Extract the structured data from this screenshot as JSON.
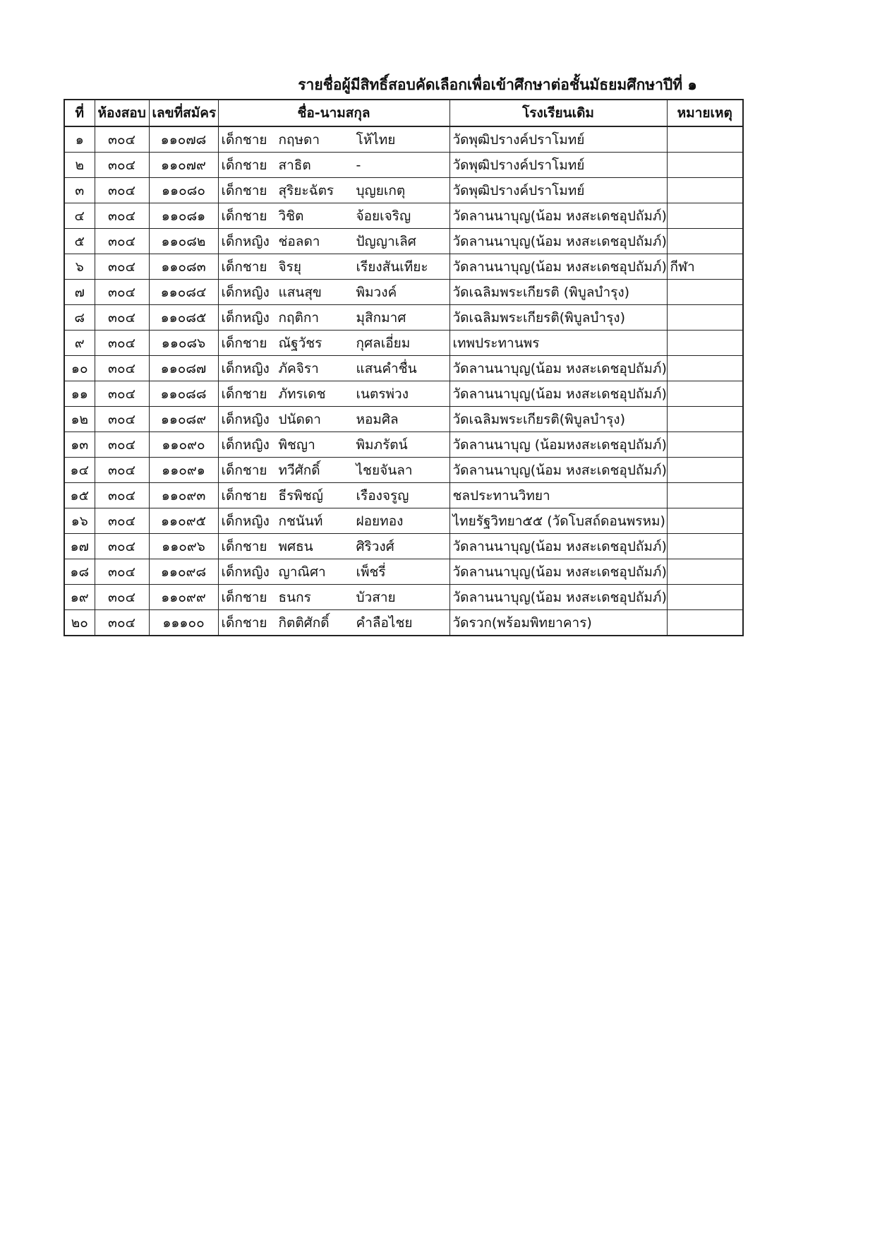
{
  "title": "รายชื่อผู้มีสิทธิ์สอบคัดเลือกเพื่อเข้าศึกษาต่อชั้นมัธยมศึกษาปีที่ ๑",
  "headers": [
    "ที่",
    "ห้องสอบ",
    "เลขที่สมัคร",
    "ชื่อ-นามสกุล",
    "โรงเรียนเดิม",
    "หมายเหตุ"
  ],
  "rows": [
    {
      "no": "๑",
      "room": "๓๐๔",
      "app": "๑๑๐๗๘",
      "prefix": "เด็กชาย",
      "first": "กฤษดา",
      "last": "โห้ไทย",
      "school": "วัดพุฒิปรางค์ปราโมทย์",
      "note": ""
    },
    {
      "no": "๒",
      "room": "๓๐๔",
      "app": "๑๑๐๗๙",
      "prefix": "เด็กชาย",
      "first": "สาธิต",
      "last": "-",
      "school": "วัดพุฒิปรางค์ปราโมทย์",
      "note": ""
    },
    {
      "no": "๓",
      "room": "๓๐๔",
      "app": "๑๑๐๘๐",
      "prefix": "เด็กชาย",
      "first": "สุริยะฉัตร",
      "last": "บุญยเกตุ",
      "school": "วัดพุฒิปรางค์ปราโมทย์",
      "note": ""
    },
    {
      "no": "๔",
      "room": "๓๐๔",
      "app": "๑๑๐๘๑",
      "prefix": "เด็กชาย",
      "first": "วิชิต",
      "last": "จ้อยเจริญ",
      "school": "วัดลานนาบุญ(น้อม หงสะเดชอุปถัมภ์)",
      "note": ""
    },
    {
      "no": "๕",
      "room": "๓๐๔",
      "app": "๑๑๐๘๒",
      "prefix": "เด็กหญิง",
      "first": "ช่อลดา",
      "last": "ปัญญาเลิศ",
      "school": "วัดลานนาบุญ(น้อม หงสะเดชอุปถัมภ์)",
      "note": ""
    },
    {
      "no": "๖",
      "room": "๓๐๔",
      "app": "๑๑๐๘๓",
      "prefix": "เด็กชาย",
      "first": "จิรยุ",
      "last": "เรียงสันเทียะ",
      "school": "วัดลานนาบุญ(น้อม หงสะเดชอุปถัมภ์)",
      "note": "กีฬา"
    },
    {
      "no": "๗",
      "room": "๓๐๔",
      "app": "๑๑๐๘๔",
      "prefix": "เด็กหญิง",
      "first": "แสนสุข",
      "last": "พิมวงค์",
      "school": "วัดเฉลิมพระเกียรติ (พิบูลบำรุง)",
      "note": ""
    },
    {
      "no": "๘",
      "room": "๓๐๔",
      "app": "๑๑๐๘๕",
      "prefix": "เด็กหญิง",
      "first": "กฤติกา",
      "last": "มุสิกมาศ",
      "school": "วัดเฉลิมพระเกียรติ(พิบูลบำรุง)",
      "note": ""
    },
    {
      "no": "๙",
      "room": "๓๐๔",
      "app": "๑๑๐๘๖",
      "prefix": "เด็กชาย",
      "first": "ณัฐวัชร",
      "last": "กุศลเอี่ยม",
      "school": "เทพประทานพร",
      "note": ""
    },
    {
      "no": "๑๐",
      "room": "๓๐๔",
      "app": "๑๑๐๘๗",
      "prefix": "เด็กหญิง",
      "first": "ภัคจิรา",
      "last": "แสนคำชื่น",
      "school": "วัดลานนาบุญ(น้อม หงสะเดชอุปถัมภ์)",
      "note": ""
    },
    {
      "no": "๑๑",
      "room": "๓๐๔",
      "app": "๑๑๐๘๘",
      "prefix": "เด็กชาย",
      "first": "ภัทรเดช",
      "last": "เนตรพ่วง",
      "school": "วัดลานนาบุญ(น้อม หงสะเดชอุปถัมภ์)",
      "note": ""
    },
    {
      "no": "๑๒",
      "room": "๓๐๔",
      "app": "๑๑๐๘๙",
      "prefix": "เด็กหญิง",
      "first": "ปนัดดา",
      "last": "หอมศิล",
      "school": "วัดเฉลิมพระเกียรติ(พิบูลบำรุง)",
      "note": ""
    },
    {
      "no": "๑๓",
      "room": "๓๐๔",
      "app": "๑๑๐๙๐",
      "prefix": "เด็กหญิง",
      "first": "พิชญา",
      "last": "พิมภรัตน์",
      "school": "วัดลานนาบุญ (น้อมหงสะเดชอุปถัมภ์)",
      "note": ""
    },
    {
      "no": "๑๔",
      "room": "๓๐๔",
      "app": "๑๑๐๙๑",
      "prefix": "เด็กชาย",
      "first": "ทวีศักดิ์",
      "last": "ไชยจันลา",
      "school": "วัดลานนาบุญ(น้อม หงสะเดชอุปถัมภ์)",
      "note": ""
    },
    {
      "no": "๑๕",
      "room": "๓๐๔",
      "app": "๑๑๐๙๓",
      "prefix": "เด็กชาย",
      "first": "ธีรพิชญ์",
      "last": "เรืองจรูญ",
      "school": "ชลประทานวิทยา",
      "note": ""
    },
    {
      "no": "๑๖",
      "room": "๓๐๔",
      "app": "๑๑๐๙๕",
      "prefix": "เด็กหญิง",
      "first": "กชนันท์",
      "last": "ฝอยทอง",
      "school": "ไทยรัฐวิทยา๕๕ (วัดโบสถ์ดอนพรหม)",
      "note": ""
    },
    {
      "no": "๑๗",
      "room": "๓๐๔",
      "app": "๑๑๐๙๖",
      "prefix": "เด็กชาย",
      "first": "พศธน",
      "last": "ศิริวงศ์",
      "school": "วัดลานนาบุญ(น้อม หงสะเดชอุปถัมภ์)",
      "note": ""
    },
    {
      "no": "๑๘",
      "room": "๓๐๔",
      "app": "๑๑๐๙๘",
      "prefix": "เด็กหญิง",
      "first": "ญาณิศา",
      "last": "เพ็ชรี่",
      "school": "วัดลานนาบุญ(น้อม หงสะเดชอุปถัมภ์)",
      "note": ""
    },
    {
      "no": "๑๙",
      "room": "๓๐๔",
      "app": "๑๑๐๙๙",
      "prefix": "เด็กชาย",
      "first": "ธนกร",
      "last": "บัวสาย",
      "school": "วัดลานนาบุญ(น้อม หงสะเดชอุปถัมภ์)",
      "note": ""
    },
    {
      "no": "๒๐",
      "room": "๓๐๔",
      "app": "๑๑๑๐๐",
      "prefix": "เด็กชาย",
      "first": "กิตติศักดิ์",
      "last": "คำลือไชย",
      "school": "วัดรวก(พร้อมพิทยาคาร)",
      "note": ""
    }
  ]
}
